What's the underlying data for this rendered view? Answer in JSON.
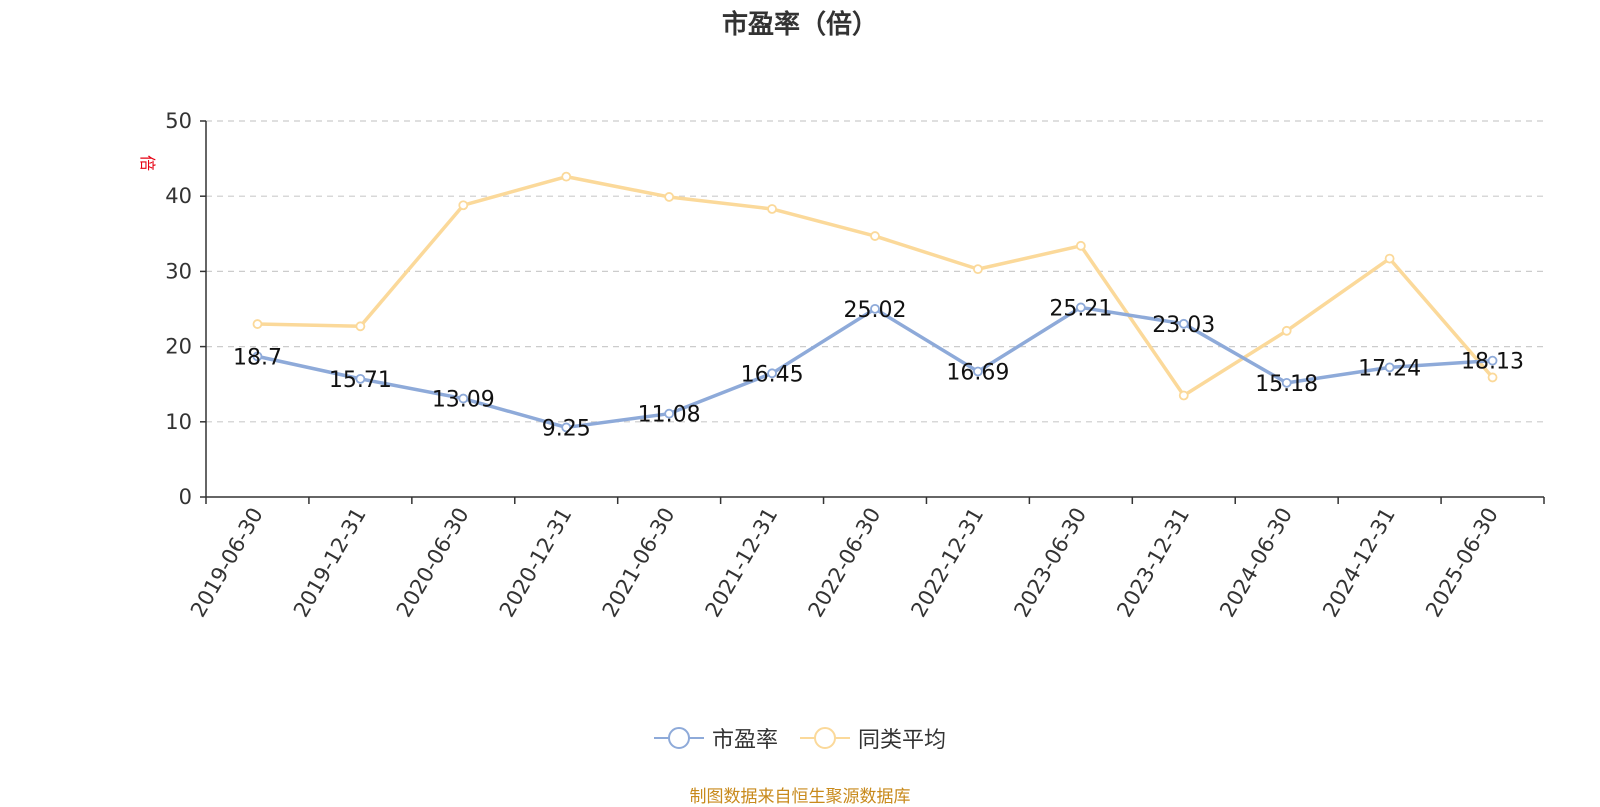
{
  "chart_data": {
    "type": "line",
    "title": "市盈率（倍）",
    "ylabel": "倍",
    "xlabel": "",
    "ylim": [
      0,
      50
    ],
    "yticks": [
      0,
      10,
      20,
      30,
      40,
      50
    ],
    "grid": "horizontal dashed",
    "legend_position": "bottom-center",
    "categories": [
      "2019-06-30",
      "2019-12-31",
      "2020-06-30",
      "2020-12-31",
      "2021-06-30",
      "2021-12-31",
      "2022-06-30",
      "2022-12-31",
      "2023-06-30",
      "2023-12-31",
      "2024-06-30",
      "2024-12-31",
      "2025-06-30"
    ],
    "series": [
      {
        "name": "市盈率",
        "color": "#8eaad9",
        "values": [
          18.7,
          15.71,
          13.09,
          9.25,
          11.08,
          16.45,
          25.02,
          16.69,
          25.21,
          23.03,
          15.18,
          17.24,
          18.13
        ],
        "labels": [
          "18.7",
          "15.71",
          "13.09",
          "9.25",
          "11.08",
          "16.45",
          "25.02",
          "16.69",
          "25.21",
          "23.03",
          "15.18",
          "17.24",
          "18.13"
        ]
      },
      {
        "name": "同类平均",
        "color": "#fbd99a",
        "values": [
          23.0,
          22.7,
          38.8,
          42.6,
          39.9,
          38.3,
          34.7,
          30.3,
          33.4,
          13.5,
          22.1,
          31.7,
          15.9
        ]
      }
    ]
  },
  "source_note": "制图数据来自恒生聚源数据库",
  "colors": {
    "axis": "#333333",
    "grid": "#cccccc",
    "ylabel": "#e60012"
  }
}
